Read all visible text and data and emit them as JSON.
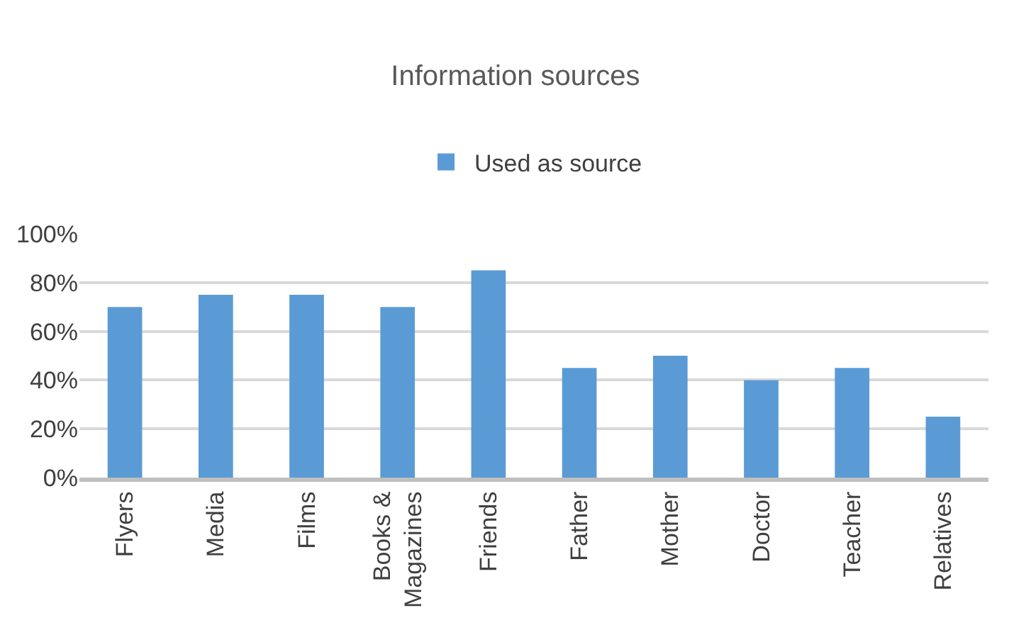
{
  "chart_data": {
    "type": "bar",
    "title": "Information sources",
    "categories": [
      "Flyers",
      "Media",
      "Films",
      "Books & Magazines",
      "Friends",
      "Father",
      "Mother",
      "Doctor",
      "Teacher",
      "Relatives"
    ],
    "series": [
      {
        "name": "Used as source",
        "color": "#5b9bd5",
        "values": [
          70,
          75,
          75,
          70,
          85,
          45,
          50,
          40,
          45,
          25
        ]
      }
    ],
    "ylim": [
      0,
      100
    ],
    "yticks": [
      {
        "value": 0,
        "label": "0%"
      },
      {
        "value": 20,
        "label": "20%"
      },
      {
        "value": 40,
        "label": "40%"
      },
      {
        "value": 60,
        "label": "60%"
      },
      {
        "value": 80,
        "label": "80%"
      },
      {
        "value": 100,
        "label": "100%"
      }
    ],
    "grid": "y",
    "legend": "top"
  }
}
